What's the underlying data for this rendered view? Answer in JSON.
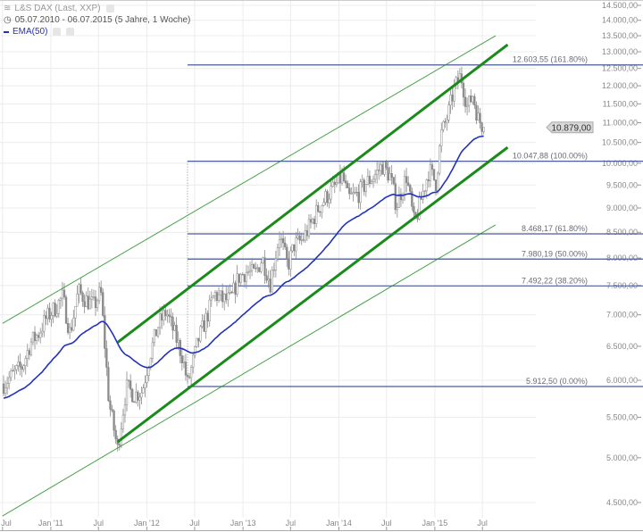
{
  "legend": {
    "instrument": "L&S DAX (Last, XXP)",
    "period": "05.07.2010 - 06.07.2015 (5 Jahre, 1 Woche)",
    "indicator": "EMA(50)"
  },
  "colors": {
    "candle": "#8a8a8a",
    "ema": "#2233bb",
    "channel": "#1a8a1a",
    "fib": "#4a5a9a",
    "grid": "#ececec",
    "price_tag": "#d8d8d8"
  },
  "icons": [
    "chart-type-icon",
    "clock-icon",
    "settings-icon",
    "close-icon"
  ],
  "chart_data": {
    "type": "candlestick",
    "interval": "weekly",
    "y_scale": "log",
    "ylim": [
      4400,
      14600
    ],
    "grid": true,
    "x_ticks": [
      {
        "date": "2010-07-01",
        "label": "Jul"
      },
      {
        "date": "2011-01-01",
        "label": "Jan '11"
      },
      {
        "date": "2011-07-01",
        "label": "Jul"
      },
      {
        "date": "2012-01-01",
        "label": "Jan '12"
      },
      {
        "date": "2012-07-01",
        "label": "Jul"
      },
      {
        "date": "2013-01-01",
        "label": "Jan '13"
      },
      {
        "date": "2013-07-01",
        "label": "Jul"
      },
      {
        "date": "2014-01-01",
        "label": "Jan '14"
      },
      {
        "date": "2014-07-01",
        "label": "Jul"
      },
      {
        "date": "2015-01-01",
        "label": "Jan '15"
      },
      {
        "date": "2015-07-01",
        "label": "Jul"
      }
    ],
    "y_ticks": [
      {
        "value": 4500,
        "label": "4.500,00"
      },
      {
        "value": 5000,
        "label": "5.000,00"
      },
      {
        "value": 5500,
        "label": "5.500,00"
      },
      {
        "value": 6000,
        "label": "6.000,00"
      },
      {
        "value": 6500,
        "label": "6.500,00"
      },
      {
        "value": 7000,
        "label": "7.000,00"
      },
      {
        "value": 7500,
        "label": "7.500,00"
      },
      {
        "value": 8000,
        "label": "8.000,00"
      },
      {
        "value": 8500,
        "label": "8.500,00"
      },
      {
        "value": 9000,
        "label": "9.000,00"
      },
      {
        "value": 9500,
        "label": "9.500,00"
      },
      {
        "value": 10000,
        "label": "10.000,00"
      },
      {
        "value": 10500,
        "label": "10.500,00"
      },
      {
        "value": 11000,
        "label": "11.000,00"
      },
      {
        "value": 11500,
        "label": "11.500,00"
      },
      {
        "value": 12000,
        "label": "12.000,00"
      },
      {
        "value": 12500,
        "label": "12.500,00"
      },
      {
        "value": 13000,
        "label": "13.000,00"
      },
      {
        "value": 13500,
        "label": "13.500,00"
      },
      {
        "value": 14000,
        "label": "14.000,00"
      },
      {
        "value": 14500,
        "label": "14.500,00"
      }
    ],
    "price_path": [
      [
        "2010-07-05",
        5950
      ],
      [
        "2010-08-15",
        6100
      ],
      [
        "2010-09-15",
        6200
      ],
      [
        "2010-10-15",
        6550
      ],
      [
        "2010-11-15",
        6700
      ],
      [
        "2010-12-15",
        6950
      ],
      [
        "2011-01-15",
        7100
      ],
      [
        "2011-02-15",
        7300
      ],
      [
        "2011-03-15",
        6700
      ],
      [
        "2011-04-15",
        7400
      ],
      [
        "2011-05-15",
        7250
      ],
      [
        "2011-06-15",
        7150
      ],
      [
        "2011-07-10",
        7400
      ],
      [
        "2011-08-10",
        5700
      ],
      [
        "2011-09-12",
        5100
      ],
      [
        "2011-10-15",
        5900
      ],
      [
        "2011-11-15",
        5800
      ],
      [
        "2011-12-15",
        5850
      ],
      [
        "2012-01-15",
        6400
      ],
      [
        "2012-02-15",
        6850
      ],
      [
        "2012-03-15",
        7050
      ],
      [
        "2012-04-15",
        6700
      ],
      [
        "2012-05-15",
        6350
      ],
      [
        "2012-06-04",
        5950
      ],
      [
        "2012-07-15",
        6600
      ],
      [
        "2012-08-15",
        6950
      ],
      [
        "2012-09-15",
        7350
      ],
      [
        "2012-10-15",
        7250
      ],
      [
        "2012-11-15",
        7250
      ],
      [
        "2012-12-15",
        7650
      ],
      [
        "2013-01-15",
        7750
      ],
      [
        "2013-02-15",
        7700
      ],
      [
        "2013-03-15",
        8000
      ],
      [
        "2013-04-15",
        7550
      ],
      [
        "2013-05-20",
        8450
      ],
      [
        "2013-06-20",
        7850
      ],
      [
        "2013-07-15",
        8250
      ],
      [
        "2013-08-15",
        8350
      ],
      [
        "2013-09-15",
        8650
      ],
      [
        "2013-10-15",
        9000
      ],
      [
        "2013-11-15",
        9250
      ],
      [
        "2013-12-15",
        9450
      ],
      [
        "2014-01-15",
        9700
      ],
      [
        "2014-02-05",
        9200
      ],
      [
        "2014-03-15",
        9300
      ],
      [
        "2014-04-15",
        9550
      ],
      [
        "2014-05-15",
        9700
      ],
      [
        "2014-06-15",
        9950
      ],
      [
        "2014-07-15",
        9700
      ],
      [
        "2014-08-08",
        9050
      ],
      [
        "2014-09-15",
        9700
      ],
      [
        "2014-10-15",
        8650
      ],
      [
        "2014-11-15",
        9300
      ],
      [
        "2014-12-10",
        9850
      ],
      [
        "2015-01-05",
        9550
      ],
      [
        "2015-01-25",
        10700
      ],
      [
        "2015-02-20",
        11200
      ],
      [
        "2015-03-15",
        11900
      ],
      [
        "2015-04-10",
        12300
      ],
      [
        "2015-05-05",
        11400
      ],
      [
        "2015-05-25",
        11750
      ],
      [
        "2015-06-15",
        11100
      ],
      [
        "2015-07-06",
        10879
      ]
    ],
    "last_price": {
      "value": 10879,
      "label": "10.879,00"
    },
    "ema_period": 50,
    "fibonacci": {
      "start_date": "2012-06-04",
      "levels": [
        {
          "value": 12603.55,
          "label": "12.603,55 (161.80%)"
        },
        {
          "value": 10047.88,
          "label": "10.047,88 (100.00%)"
        },
        {
          "value": 8468.17,
          "label": "8.468,17 (61.80%)"
        },
        {
          "value": 7980.19,
          "label": "7.980,19 (50.00%)"
        },
        {
          "value": 7492.22,
          "label": "7.492,22 (38.20%)"
        },
        {
          "value": 5912.5,
          "label": "5.912,50 (0.00%)"
        }
      ]
    },
    "trendlines": [
      {
        "kind": "channel-upper",
        "weight": "thick",
        "from": [
          "2011-09-12",
          6560
        ],
        "to": [
          "2015-10-05",
          13220
        ]
      },
      {
        "kind": "channel-lower",
        "weight": "thick",
        "from": [
          "2011-09-12",
          5190
        ],
        "to": [
          "2015-10-05",
          10380
        ]
      },
      {
        "kind": "outer-upper",
        "weight": "thin",
        "from": [
          "2010-07-01",
          6860
        ],
        "to": [
          "2015-08-20",
          13500
        ]
      },
      {
        "kind": "outer-lower",
        "weight": "thin",
        "from": [
          "2010-07-01",
          4360
        ],
        "to": [
          "2015-08-20",
          8650
        ]
      }
    ]
  }
}
